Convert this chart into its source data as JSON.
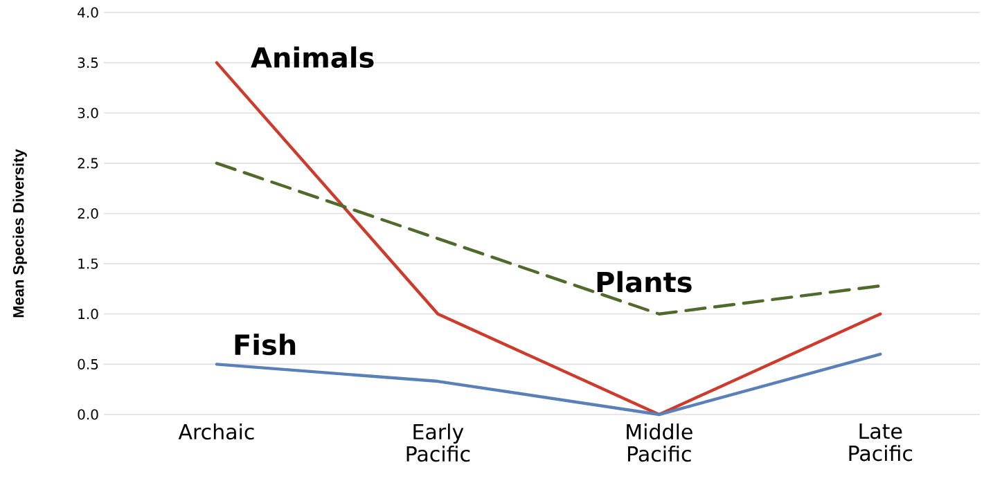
{
  "chart_data": {
    "type": "line",
    "ylabel": "Mean Species Diversity",
    "categories": [
      "Archaic",
      "Early Pacific",
      "Middle Pacific",
      "Late Pacific"
    ],
    "series": [
      {
        "name": "Animals",
        "color": "#cc3b2b",
        "line_style": "solid",
        "values": [
          3.5,
          1.0,
          0.0,
          1.0
        ]
      },
      {
        "name": "Plants",
        "color": "#4f6a2a",
        "line_style": "dashed",
        "values": [
          2.5,
          1.75,
          1.0,
          1.28
        ]
      },
      {
        "name": "Fish",
        "color": "#5a80b8",
        "line_style": "solid",
        "values": [
          0.5,
          0.33,
          0.0,
          0.6
        ]
      }
    ],
    "ylim": [
      0,
      4
    ],
    "yticks": [
      {
        "value": 0,
        "label": "0.0"
      },
      {
        "value": 0.5,
        "label": "0.5"
      },
      {
        "value": 1,
        "label": "1.0"
      },
      {
        "value": 1.5,
        "label": "1.5"
      },
      {
        "value": 2,
        "label": "2.0"
      },
      {
        "value": 2.5,
        "label": "2.5"
      },
      {
        "value": 3,
        "label": "3.0"
      },
      {
        "value": 3.5,
        "label": "3.5"
      },
      {
        "value": 4,
        "label": "4.0"
      }
    ],
    "grid": "y",
    "legend": false,
    "marker": "none"
  }
}
